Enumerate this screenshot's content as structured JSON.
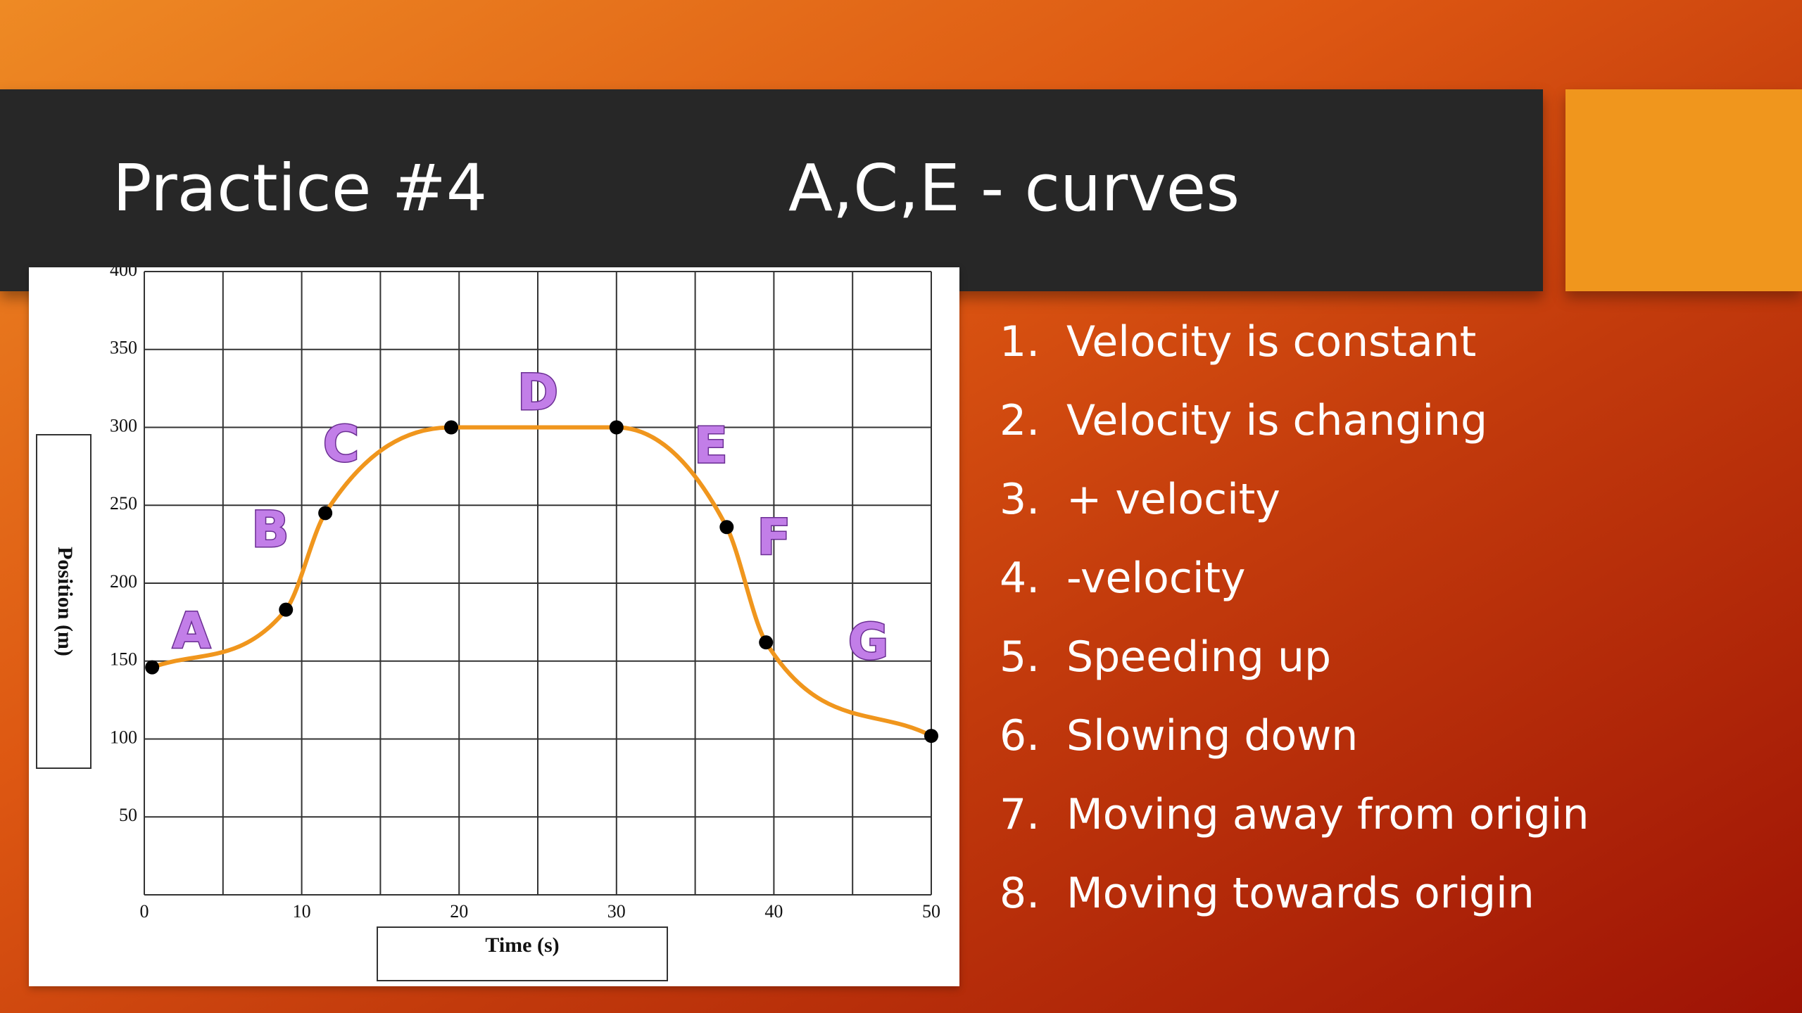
{
  "slide": {
    "title_left": "Practice #4",
    "title_right": "A,C,E - curves",
    "colors": {
      "title_bar": "#272727",
      "accent": "#f0961d",
      "curve": "#f0961d",
      "segment_labels": "#c27ee8"
    }
  },
  "list": [
    {
      "num": "1.",
      "text": "Velocity is constant"
    },
    {
      "num": "2.",
      "text": "Velocity is changing"
    },
    {
      "num": "3.",
      "text": "+ velocity"
    },
    {
      "num": "4.",
      "text": "-velocity"
    },
    {
      "num": "5.",
      "text": "Speeding up"
    },
    {
      "num": "6.",
      "text": "Slowing down"
    },
    {
      "num": "7.",
      "text": "Moving away from origin"
    },
    {
      "num": "8.",
      "text": "Moving towards origin"
    }
  ],
  "chart_data": {
    "type": "line",
    "title": "",
    "xlabel": "Time (s)",
    "ylabel": "Position (m)",
    "xlim": [
      0,
      50
    ],
    "ylim": [
      0,
      400
    ],
    "xticks": [
      0,
      10,
      20,
      30,
      40,
      50
    ],
    "yticks": [
      50,
      100,
      150,
      200,
      250,
      300,
      350,
      400
    ],
    "grid": true,
    "x_grid_step": 5,
    "y_grid_step": 50,
    "points": [
      {
        "x": 0.5,
        "y": 146
      },
      {
        "x": 9,
        "y": 183
      },
      {
        "x": 11.5,
        "y": 245
      },
      {
        "x": 19.5,
        "y": 300
      },
      {
        "x": 30,
        "y": 300
      },
      {
        "x": 37,
        "y": 236
      },
      {
        "x": 39.5,
        "y": 162
      },
      {
        "x": 50,
        "y": 102
      }
    ],
    "segments": [
      {
        "label": "A",
        "x": 3,
        "y": 167
      },
      {
        "label": "B",
        "x": 8,
        "y": 232
      },
      {
        "label": "C",
        "x": 12.5,
        "y": 287
      },
      {
        "label": "D",
        "x": 25,
        "y": 320
      },
      {
        "label": "E",
        "x": 36,
        "y": 286
      },
      {
        "label": "F",
        "x": 40,
        "y": 227
      },
      {
        "label": "G",
        "x": 46,
        "y": 160
      }
    ]
  }
}
